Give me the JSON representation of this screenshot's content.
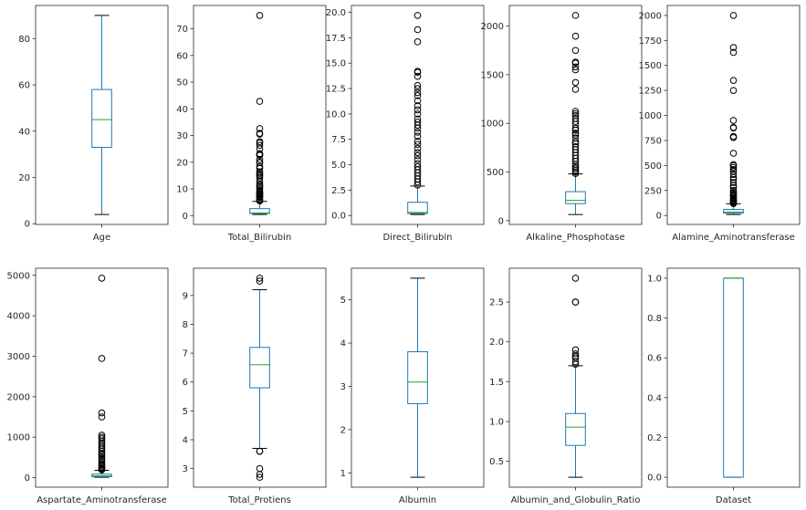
{
  "chart_data": [
    {
      "type": "box",
      "label": "Age",
      "ylim": [
        -0.3,
        94.3
      ],
      "ticks": [
        0,
        20,
        40,
        60,
        80
      ],
      "tick_labels": [
        "0",
        "20",
        "40",
        "60",
        "80"
      ],
      "whislo": 4,
      "q1": 33,
      "med": 45,
      "q3": 58,
      "whishi": 90,
      "fliers": []
    },
    {
      "type": "box",
      "label": "Total_Bilirubin",
      "ylim": [
        -3.33,
        78.73
      ],
      "ticks": [
        0,
        10,
        20,
        30,
        40,
        50,
        60,
        70
      ],
      "tick_labels": [
        "0",
        "10",
        "20",
        "30",
        "40",
        "50",
        "60",
        "70"
      ],
      "whislo": 0.4,
      "q1": 0.8,
      "med": 1.0,
      "q3": 2.6,
      "whishi": 5.3,
      "fliers": [
        5.5,
        5.8,
        6.2,
        6.8,
        7.1,
        7.3,
        7.7,
        8.0,
        8.2,
        8.6,
        8.9,
        9.4,
        10.2,
        10.9,
        11.3,
        11.8,
        12.7,
        14.1,
        14.8,
        15.2,
        15.8,
        16.4,
        17.7,
        18.4,
        19.8,
        20.0,
        21.0,
        22.6,
        22.7,
        23.0,
        23.2,
        25.0,
        26.3,
        27.2,
        27.7,
        30.5,
        30.8,
        32.6,
        42.8,
        75.0
      ]
    },
    {
      "type": "box",
      "label": "Direct_Bilirubin",
      "ylim": [
        -0.88,
        20.68
      ],
      "ticks": [
        0,
        2.5,
        5,
        7.5,
        10,
        12.5,
        15,
        17.5,
        20
      ],
      "tick_labels": [
        "0.0",
        "2.5",
        "5.0",
        "7.5",
        "10.0",
        "12.5",
        "15.0",
        "17.5",
        "20.0"
      ],
      "whislo": 0.1,
      "q1": 0.2,
      "med": 0.3,
      "q3": 1.3,
      "whishi": 2.9,
      "fliers": [
        3.0,
        3.3,
        3.6,
        3.9,
        4.2,
        4.5,
        4.8,
        5.1,
        5.5,
        5.9,
        6.2,
        6.6,
        7.0,
        7.3,
        7.8,
        8.2,
        8.6,
        8.9,
        9.2,
        9.5,
        10.0,
        10.4,
        10.8,
        11.3,
        11.8,
        12.1,
        12.5,
        12.8,
        13.7,
        14.1,
        14.2,
        17.1,
        18.3,
        19.7
      ]
    },
    {
      "type": "box",
      "label": "Alkaline_Phosphotase",
      "ylim": [
        -39,
        2212
      ],
      "ticks": [
        0,
        500,
        1000,
        1500,
        2000
      ],
      "tick_labels": [
        "0",
        "500",
        "1000",
        "1500",
        "2000"
      ],
      "whislo": 63,
      "q1": 175,
      "med": 208,
      "q3": 298,
      "whishi": 480,
      "fliers": [
        485,
        500,
        520,
        540,
        560,
        580,
        610,
        640,
        670,
        700,
        730,
        760,
        790,
        810,
        850,
        880,
        900,
        930,
        950,
        990,
        1020,
        1050,
        1080,
        1100,
        1124,
        1350,
        1420,
        1550,
        1580,
        1620,
        1630,
        1750,
        1896,
        2110
      ]
    },
    {
      "type": "box",
      "label": "Alamine_Aminotransferase",
      "ylim": [
        -89.5,
        2099.5
      ],
      "ticks": [
        0,
        250,
        500,
        750,
        1000,
        1250,
        1500,
        1750,
        2000
      ],
      "tick_labels": [
        "0",
        "250",
        "500",
        "750",
        "1000",
        "1250",
        "1500",
        "1750",
        "2000"
      ],
      "whislo": 10,
      "q1": 23,
      "med": 35,
      "q3": 61,
      "whishi": 117,
      "fliers": [
        119,
        125,
        135,
        145,
        152,
        160,
        170,
        180,
        195,
        205,
        215,
        230,
        250,
        280,
        300,
        330,
        360,
        380,
        410,
        440,
        460,
        480,
        500,
        509,
        622,
        779,
        790,
        875,
        880,
        950,
        1250,
        1350,
        1630,
        1680,
        2000
      ]
    },
    {
      "type": "box",
      "label": "Aspartate_Aminotransferase",
      "ylim": [
        -236,
        5175
      ],
      "ticks": [
        0,
        1000,
        2000,
        3000,
        4000,
        5000
      ],
      "tick_labels": [
        "0",
        "1000",
        "2000",
        "3000",
        "4000",
        "5000"
      ],
      "whislo": 10,
      "q1": 25,
      "med": 42,
      "q3": 87,
      "whishi": 180,
      "fliers": [
        190,
        210,
        230,
        260,
        290,
        320,
        350,
        400,
        440,
        480,
        520,
        570,
        600,
        650,
        700,
        750,
        800,
        850,
        900,
        960,
        1000,
        1050,
        1500,
        1600,
        2946,
        4929
      ]
    },
    {
      "type": "box",
      "label": "Total_Protiens",
      "ylim": [
        2.355,
        9.945
      ],
      "ticks": [
        3,
        4,
        5,
        6,
        7,
        8,
        9
      ],
      "tick_labels": [
        "3",
        "4",
        "5",
        "6",
        "7",
        "8",
        "9"
      ],
      "whislo": 3.7,
      "q1": 5.8,
      "med": 6.6,
      "q3": 7.2,
      "whishi": 9.2,
      "fliers": [
        2.7,
        2.8,
        3.0,
        3.6,
        3.6,
        9.5,
        9.6
      ]
    },
    {
      "type": "box",
      "label": "Albumin",
      "ylim": [
        0.67,
        5.73
      ],
      "ticks": [
        1,
        2,
        3,
        4,
        5
      ],
      "tick_labels": [
        "1",
        "2",
        "3",
        "4",
        "5"
      ],
      "whislo": 0.9,
      "q1": 2.6,
      "med": 3.1,
      "q3": 3.8,
      "whishi": 5.5,
      "fliers": []
    },
    {
      "type": "box",
      "label": "Albumin_and_Globulin_Ratio",
      "ylim": [
        0.175,
        2.925
      ],
      "ticks": [
        0.5,
        1.0,
        1.5,
        2.0,
        2.5
      ],
      "tick_labels": [
        "0.5",
        "1.0",
        "1.5",
        "2.0",
        "2.5"
      ],
      "whislo": 0.3,
      "q1": 0.7,
      "med": 0.93,
      "q3": 1.1,
      "whishi": 1.7,
      "fliers": [
        1.72,
        1.75,
        1.8,
        1.82,
        1.85,
        1.9,
        2.5,
        2.5,
        2.8
      ]
    },
    {
      "type": "box",
      "label": "Dataset",
      "ylim": [
        -0.05,
        1.05
      ],
      "ticks": [
        0,
        0.2,
        0.4,
        0.6,
        0.8,
        1.0
      ],
      "tick_labels": [
        "0.0",
        "0.2",
        "0.4",
        "0.6",
        "0.8",
        "1.0"
      ],
      "whislo": 0,
      "q1": 0,
      "med": 1,
      "q3": 1,
      "whishi": 1,
      "fliers": []
    }
  ],
  "colors": {
    "box": "#1f77b4",
    "median": "#2ca02c",
    "flier": "#000000",
    "axes": "#262626"
  }
}
